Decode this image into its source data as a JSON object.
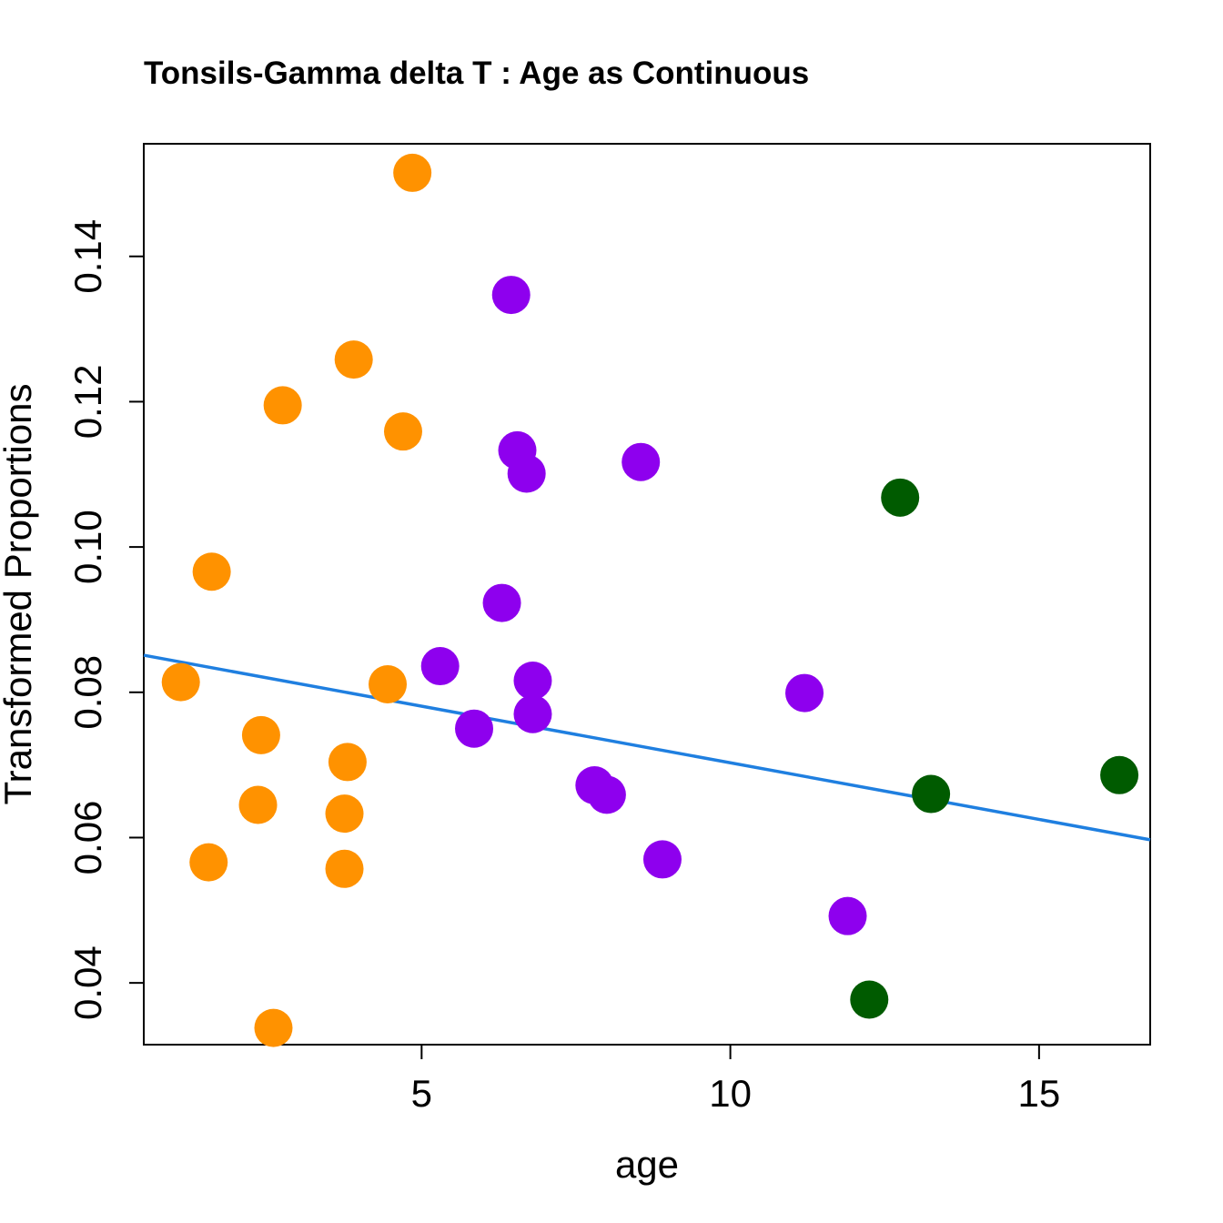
{
  "chart_data": {
    "type": "scatter",
    "title": "Tonsils-Gamma delta T : Age as Continuous",
    "xlabel": "age",
    "ylabel": "Transformed Proportions",
    "xlim": [
      0.5,
      16.8
    ],
    "ylim": [
      0.0315,
      0.1555
    ],
    "xticks": [
      5,
      10,
      15
    ],
    "xtick_labels": [
      "5",
      "10",
      "15"
    ],
    "yticks": [
      0.04,
      0.06,
      0.08,
      0.1,
      0.12,
      0.14
    ],
    "ytick_labels": [
      "0.04",
      "0.06",
      "0.08",
      "0.10",
      "0.12",
      "0.14"
    ],
    "grid": false,
    "colors": {
      "orange": "#FF9200",
      "purple": "#8E00EE",
      "green": "#005B00",
      "line": "#1F7FE0",
      "axis": "#000000"
    },
    "series": [
      {
        "name": "orange",
        "color": "#FF9200",
        "points": [
          {
            "x": 4.85,
            "y": 0.1515
          },
          {
            "x": 3.9,
            "y": 0.1258
          },
          {
            "x": 2.75,
            "y": 0.1195
          },
          {
            "x": 4.7,
            "y": 0.1159
          },
          {
            "x": 1.6,
            "y": 0.0966
          },
          {
            "x": 1.1,
            "y": 0.0814
          },
          {
            "x": 4.45,
            "y": 0.0811
          },
          {
            "x": 2.4,
            "y": 0.0741
          },
          {
            "x": 3.8,
            "y": 0.0704
          },
          {
            "x": 2.35,
            "y": 0.0645
          },
          {
            "x": 3.75,
            "y": 0.0633
          },
          {
            "x": 1.55,
            "y": 0.0566
          },
          {
            "x": 3.75,
            "y": 0.0557
          },
          {
            "x": 2.6,
            "y": 0.0338
          }
        ]
      },
      {
        "name": "purple",
        "color": "#8E00EE",
        "points": [
          {
            "x": 6.45,
            "y": 0.1347
          },
          {
            "x": 6.55,
            "y": 0.1133
          },
          {
            "x": 6.7,
            "y": 0.1101
          },
          {
            "x": 8.55,
            "y": 0.1117
          },
          {
            "x": 6.3,
            "y": 0.0923
          },
          {
            "x": 5.3,
            "y": 0.0836
          },
          {
            "x": 6.8,
            "y": 0.0816
          },
          {
            "x": 6.8,
            "y": 0.077
          },
          {
            "x": 5.85,
            "y": 0.075
          },
          {
            "x": 11.2,
            "y": 0.0799
          },
          {
            "x": 7.8,
            "y": 0.0672
          },
          {
            "x": 8.0,
            "y": 0.0659
          },
          {
            "x": 8.9,
            "y": 0.057
          },
          {
            "x": 11.9,
            "y": 0.0492
          }
        ]
      },
      {
        "name": "green",
        "color": "#005B00",
        "points": [
          {
            "x": 12.75,
            "y": 0.1068
          },
          {
            "x": 13.25,
            "y": 0.066
          },
          {
            "x": 16.3,
            "y": 0.0686
          },
          {
            "x": 12.25,
            "y": 0.0377
          }
        ]
      }
    ],
    "trend_line": {
      "color": "#1F7FE0",
      "x": [
        0.5,
        16.8
      ],
      "y": [
        0.0851,
        0.0597
      ]
    }
  }
}
